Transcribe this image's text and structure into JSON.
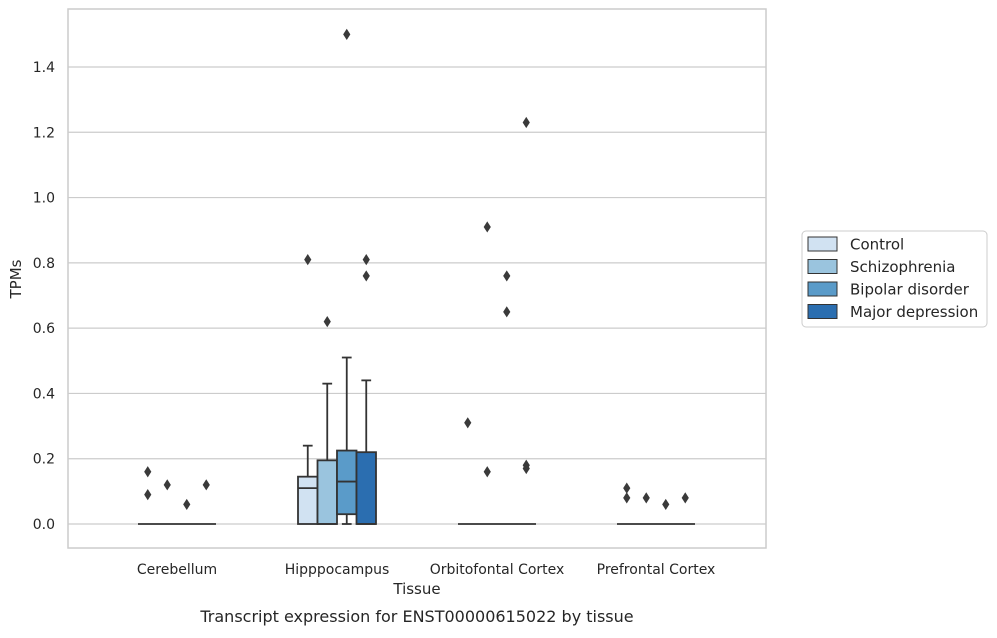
{
  "chart_data": {
    "type": "box",
    "title": "",
    "caption": "Transcript expression for ENST00000615022 by tissue",
    "xlabel": "Tissue",
    "ylabel": "TPMs",
    "ylim": [
      -0.07,
      1.55
    ],
    "yticks": [
      "0.0",
      "0.2",
      "0.4",
      "0.6",
      "0.8",
      "1.0",
      "1.2",
      "1.4"
    ],
    "ytick_values": [
      0,
      0.2,
      0.4,
      0.6,
      0.8,
      1.0,
      1.2,
      1.4
    ],
    "grid": true,
    "legend_position": "right",
    "categories": [
      "Cerebellum",
      "Hipppocampus",
      "Orbitofontal Cortex",
      "Prefrontal Cortex"
    ],
    "series": [
      {
        "name": "Control",
        "color": "#d1e2f2",
        "boxes": [
          {
            "category": "Cerebellum",
            "whisker_low": 0,
            "q1": 0,
            "median": 0,
            "q3": 0,
            "whisker_high": 0,
            "outliers": [
              0.16,
              0.09
            ]
          },
          {
            "category": "Hipppocampus",
            "whisker_low": 0,
            "q1": 0,
            "median": 0.11,
            "q3": 0.145,
            "whisker_high": 0.24,
            "outliers": [
              0.81
            ]
          },
          {
            "category": "Orbitofontal Cortex",
            "whisker_low": 0,
            "q1": 0,
            "median": 0,
            "q3": 0,
            "whisker_high": 0,
            "outliers": [
              0.31
            ]
          },
          {
            "category": "Prefrontal Cortex",
            "whisker_low": 0,
            "q1": 0,
            "median": 0,
            "q3": 0,
            "whisker_high": 0,
            "outliers": [
              0.11,
              0.08
            ]
          }
        ]
      },
      {
        "name": "Schizophrenia",
        "color": "#9ac4de",
        "boxes": [
          {
            "category": "Cerebellum",
            "whisker_low": 0,
            "q1": 0,
            "median": 0,
            "q3": 0,
            "whisker_high": 0,
            "outliers": [
              0.12
            ]
          },
          {
            "category": "Hipppocampus",
            "whisker_low": 0,
            "q1": 0,
            "median": 0,
            "q3": 0.195,
            "whisker_high": 0.43,
            "outliers": [
              0.62
            ]
          },
          {
            "category": "Orbitofontal Cortex",
            "whisker_low": 0,
            "q1": 0,
            "median": 0,
            "q3": 0,
            "whisker_high": 0,
            "outliers": [
              0.91,
              0.16
            ]
          },
          {
            "category": "Prefrontal Cortex",
            "whisker_low": 0,
            "q1": 0,
            "median": 0,
            "q3": 0,
            "whisker_high": 0,
            "outliers": [
              0.08
            ]
          }
        ]
      },
      {
        "name": "Bipolar disorder",
        "color": "#5a9bc9",
        "boxes": [
          {
            "category": "Cerebellum",
            "whisker_low": 0,
            "q1": 0,
            "median": 0,
            "q3": 0,
            "whisker_high": 0,
            "outliers": [
              0.06
            ]
          },
          {
            "category": "Hipppocampus",
            "whisker_low": 0,
            "q1": 0.03,
            "median": 0.13,
            "q3": 0.225,
            "whisker_high": 0.51,
            "outliers": [
              1.5
            ]
          },
          {
            "category": "Orbitofontal Cortex",
            "whisker_low": 0,
            "q1": 0,
            "median": 0,
            "q3": 0,
            "whisker_high": 0,
            "outliers": [
              0.76,
              0.65
            ]
          },
          {
            "category": "Prefrontal Cortex",
            "whisker_low": 0,
            "q1": 0,
            "median": 0,
            "q3": 0,
            "whisker_high": 0,
            "outliers": [
              0.06
            ]
          }
        ]
      },
      {
        "name": "Major depression",
        "color": "#2b6eb0",
        "boxes": [
          {
            "category": "Cerebellum",
            "whisker_low": 0,
            "q1": 0,
            "median": 0,
            "q3": 0,
            "whisker_high": 0,
            "outliers": [
              0.12
            ]
          },
          {
            "category": "Hipppocampus",
            "whisker_low": 0,
            "q1": 0,
            "median": 0,
            "q3": 0.22,
            "whisker_high": 0.44,
            "outliers": [
              0.81,
              0.76
            ]
          },
          {
            "category": "Orbitofontal Cortex",
            "whisker_low": 0,
            "q1": 0,
            "median": 0,
            "q3": 0,
            "whisker_high": 0,
            "outliers": [
              1.23,
              0.18,
              0.17
            ]
          },
          {
            "category": "Prefrontal Cortex",
            "whisker_low": 0,
            "q1": 0,
            "median": 0,
            "q3": 0,
            "whisker_high": 0,
            "outliers": [
              0.08
            ]
          }
        ]
      }
    ]
  }
}
